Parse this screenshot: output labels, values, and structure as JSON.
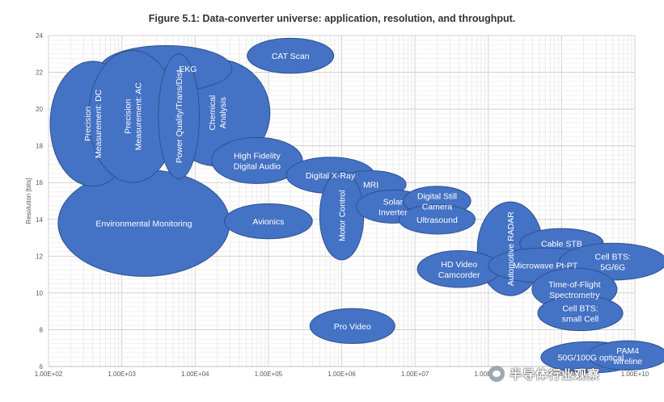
{
  "chart_data": {
    "type": "bubble",
    "title": "Figure 5.1: Data-converter universe: application, resolution, and throughput.",
    "xlabel": "",
    "ylabel": "Resolution [bits]",
    "x_scale": "log",
    "xlim": [
      100,
      10000000000
    ],
    "ylim": [
      6,
      24
    ],
    "x_tick_labels": [
      "1.00E+02",
      "1.00E+03",
      "1.00E+04",
      "1.00E+05",
      "1.00E+06",
      "1.00E+07",
      "1.00E+08",
      "1.00E+09",
      "1.00E+10"
    ],
    "y_ticks": [
      6,
      8,
      10,
      12,
      14,
      16,
      18,
      20,
      22,
      24
    ],
    "grid": true,
    "bubble_color": "#4472C4",
    "bubbles": [
      {
        "label": "Environmental Monitoring",
        "x": 2000,
        "y": 13.8
      },
      {
        "label": "Chemical Analysis",
        "x": 20000,
        "y": 19.8
      },
      {
        "label": "EKG",
        "x": 4000,
        "y": 22.2
      },
      {
        "label": "Precision Measurement: DC",
        "x": 400,
        "y": 19.2
      },
      {
        "label": "Precision Measurement: AC",
        "x": 1400,
        "y": 19.6
      },
      {
        "label": "Power Quality/Trans/Dist",
        "x": 6000,
        "y": 19.6
      },
      {
        "label": "CAT Scan",
        "x": 200000,
        "y": 22.9
      },
      {
        "label": "High Fidelity Digital Audio",
        "x": 70000,
        "y": 17.2
      },
      {
        "label": "Avionics",
        "x": 100000,
        "y": 13.9
      },
      {
        "label": "Digital X-Ray",
        "x": 700000,
        "y": 16.4
      },
      {
        "label": "MRI",
        "x": 2500000,
        "y": 15.9
      },
      {
        "label": "Motor Control",
        "x": 1000000,
        "y": 14.2
      },
      {
        "label": "Solar Inverter",
        "x": 5000000,
        "y": 14.7
      },
      {
        "label": "Digital Still Camera",
        "x": 20000000,
        "y": 15.0
      },
      {
        "label": "Ultrasound",
        "x": 20000000,
        "y": 14.0
      },
      {
        "label": "Automotive RADAR",
        "x": 200000000,
        "y": 12.4
      },
      {
        "label": "HD Video Camcorder",
        "x": 40000000,
        "y": 11.3
      },
      {
        "label": "Cable STB",
        "x": 1000000000,
        "y": 12.7
      },
      {
        "label": "Microwave Pt-PT",
        "x": 600000000,
        "y": 11.5
      },
      {
        "label": "Cell BTS: 5G/6G",
        "x": 5000000000,
        "y": 11.7
      },
      {
        "label": "Time-of-Flight Spectrometry",
        "x": 1500000000,
        "y": 10.2
      },
      {
        "label": "Cell BTS: small Cell",
        "x": 1800000000,
        "y": 8.9
      },
      {
        "label": "Pro Video",
        "x": 1400000,
        "y": 8.2
      },
      {
        "label": "50G/100G optical",
        "x": 2500000000,
        "y": 6.5
      },
      {
        "label": "PAM4 wireline",
        "x": 8000000000,
        "y": 6.6
      }
    ]
  },
  "watermark": "半导体行业观察"
}
